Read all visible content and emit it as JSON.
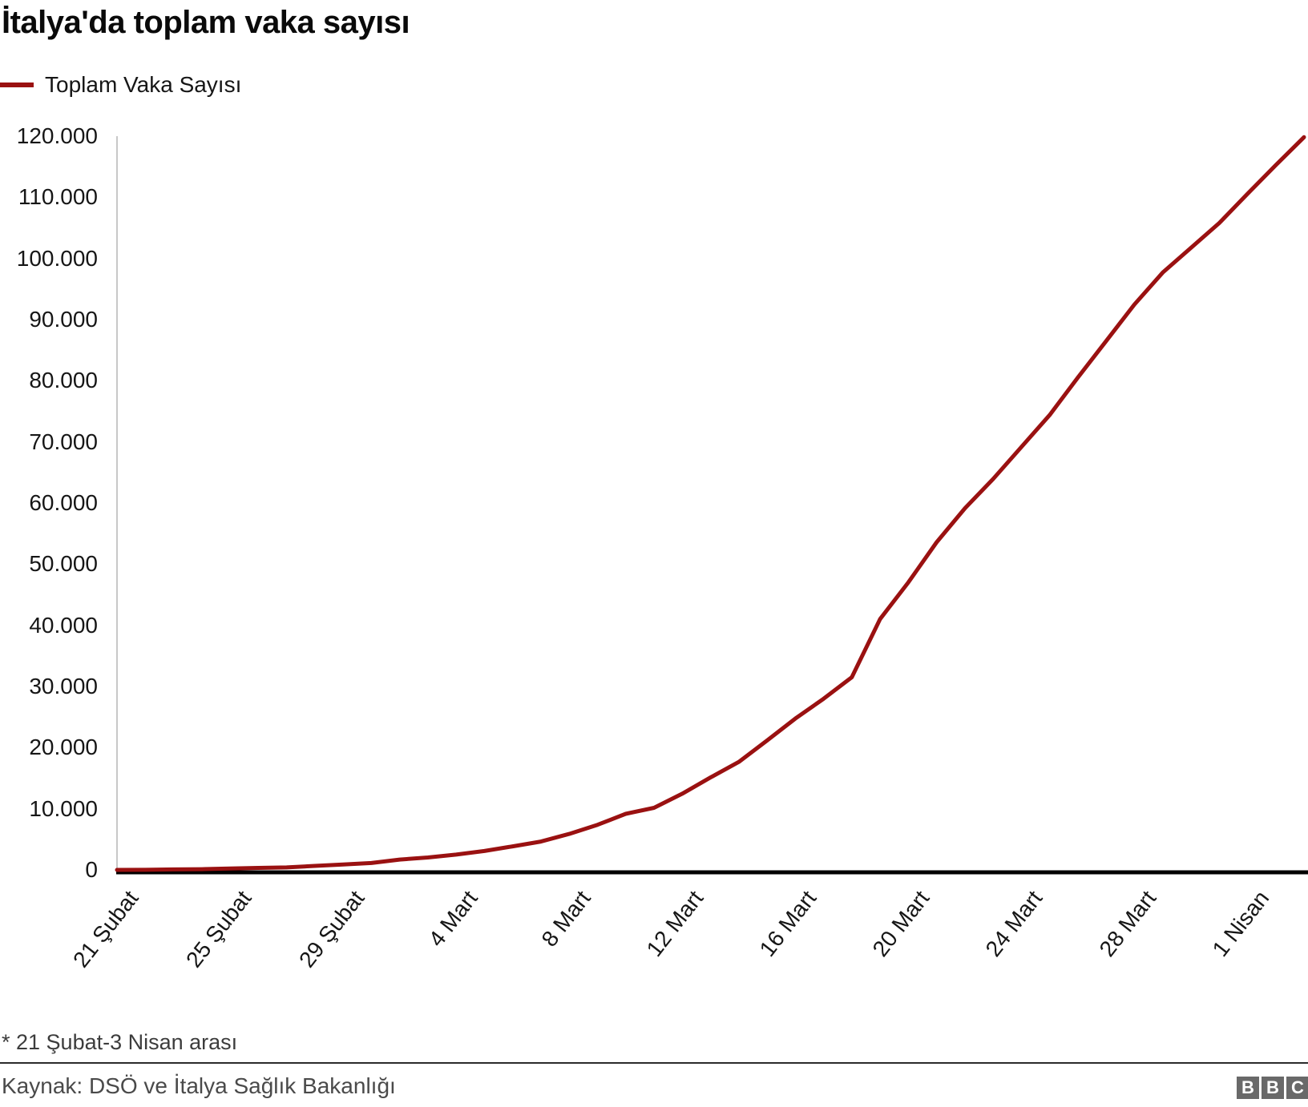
{
  "title": "İtalya'da toplam vaka sayısı",
  "legend": {
    "label": "Toplam Vaka Sayısı",
    "color": "#9a1111"
  },
  "footnote": "* 21 Şubat-3 Nisan arası",
  "source": "Kaynak: DSÖ ve İtalya Sağlık Bakanlığı",
  "logo": {
    "letters": [
      "B",
      "B",
      "C"
    ]
  },
  "colors": {
    "line": "#9a1111",
    "x_axis": "#000000",
    "y_axis": "#c8c8c8",
    "text": "#161616"
  },
  "chart_data": {
    "type": "line",
    "title": "İtalya'da toplam vaka sayısı",
    "xlabel": "",
    "ylabel": "",
    "ylim": [
      0,
      120000
    ],
    "grid": false,
    "legend_position": "top-left",
    "x": [
      "21 Şubat",
      "22 Şubat",
      "23 Şubat",
      "24 Şubat",
      "25 Şubat",
      "26 Şubat",
      "27 Şubat",
      "28 Şubat",
      "29 Şubat",
      "1 Mart",
      "2 Mart",
      "3 Mart",
      "4 Mart",
      "5 Mart",
      "6 Mart",
      "7 Mart",
      "8 Mart",
      "9 Mart",
      "10 Mart",
      "11 Mart",
      "12 Mart",
      "13 Mart",
      "14 Mart",
      "15 Mart",
      "16 Mart",
      "17 Mart",
      "18 Mart",
      "19 Mart",
      "20 Mart",
      "21 Mart",
      "22 Mart",
      "23 Mart",
      "24 Mart",
      "25 Mart",
      "26 Mart",
      "27 Mart",
      "28 Mart",
      "29 Mart",
      "30 Mart",
      "31 Mart",
      "1 Nisan",
      "2 Nisan",
      "3 Nisan"
    ],
    "series": [
      {
        "name": "Toplam Vaka Sayısı",
        "color": "#9a1111",
        "values": [
          3,
          9,
          76,
          124,
          229,
          322,
          400,
          650,
          888,
          1128,
          1689,
          2036,
          2502,
          3089,
          3858,
          4636,
          5883,
          7375,
          9172,
          10149,
          12462,
          15113,
          17660,
          21157,
          24747,
          27980,
          31506,
          41035,
          47021,
          53578,
          59138,
          63927,
          69176,
          74386,
          80539,
          86498,
          92472,
          97689,
          101739,
          105792,
          110574,
          115242,
          119827
        ]
      }
    ],
    "x_tick_labels": [
      "21 Şubat",
      "25 Şubat",
      "29 Şubat",
      "4 Mart",
      "8 Mart",
      "12 Mart",
      "16 Mart",
      "20 Mart",
      "24 Mart",
      "28 Mart",
      "1 Nisan"
    ],
    "x_tick_every": 4,
    "y_ticks": [
      0,
      10000,
      20000,
      30000,
      40000,
      50000,
      60000,
      70000,
      80000,
      90000,
      100000,
      110000,
      120000
    ],
    "y_tick_labels": [
      "0",
      "10.000",
      "20.000",
      "30.000",
      "40.000",
      "50.000",
      "60.000",
      "70.000",
      "80.000",
      "90.000",
      "100.000",
      "110.000",
      "120.000"
    ]
  }
}
